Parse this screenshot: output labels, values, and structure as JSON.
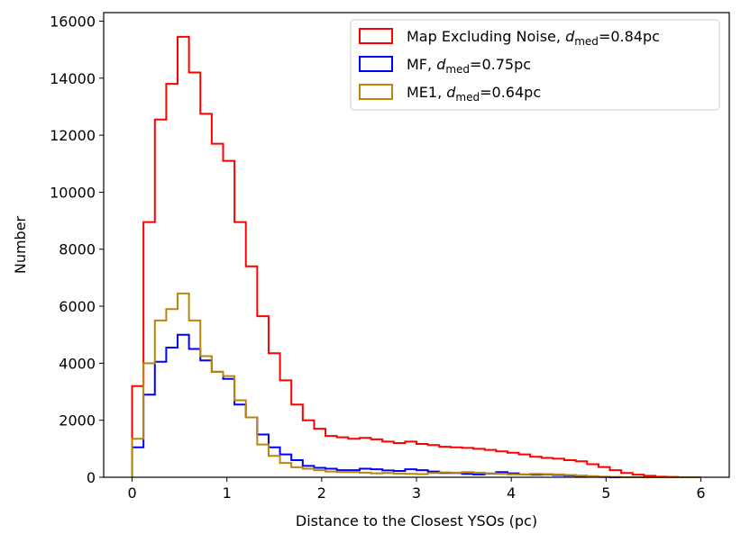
{
  "chart_data": {
    "type": "histogram",
    "xlabel": "Distance to the Closest YSOs (pc)",
    "ylabel": "Number",
    "xlim": [
      -0.3,
      6.3
    ],
    "ylim": [
      0,
      16300
    ],
    "xticks": [
      0,
      1,
      2,
      3,
      4,
      5,
      6
    ],
    "yticks": [
      0,
      2000,
      4000,
      6000,
      8000,
      10000,
      12000,
      14000,
      16000
    ],
    "bin_width": 0.12,
    "x_start": 0,
    "legend_position": "top-right",
    "series": [
      {
        "name": "Map Excluding Noise",
        "legend_prefix": "Map Excluding Noise, ",
        "legend_var": "d",
        "legend_sub": "med",
        "legend_value": "=0.84pc",
        "color": "#ff0000",
        "values": [
          3200,
          8950,
          12550,
          13800,
          15450,
          14200,
          12750,
          11700,
          11100,
          8950,
          7400,
          5650,
          4350,
          3400,
          2550,
          2000,
          1700,
          1450,
          1400,
          1350,
          1380,
          1330,
          1250,
          1200,
          1250,
          1170,
          1130,
          1070,
          1050,
          1030,
          1000,
          960,
          910,
          860,
          800,
          720,
          680,
          650,
          600,
          560,
          460,
          360,
          250,
          150,
          90,
          50,
          20,
          10,
          0,
          0
        ]
      },
      {
        "name": "MF",
        "legend_prefix": "MF, ",
        "legend_var": "d",
        "legend_sub": "med",
        "legend_value": "=0.75pc",
        "color": "#0000ff",
        "values": [
          1050,
          2900,
          4050,
          4550,
          5000,
          4500,
          4100,
          3700,
          3450,
          2550,
          2100,
          1500,
          1050,
          800,
          600,
          400,
          330,
          300,
          250,
          250,
          300,
          280,
          240,
          220,
          280,
          250,
          200,
          150,
          150,
          120,
          100,
          130,
          180,
          140,
          100,
          90,
          100,
          80,
          60,
          40,
          20,
          10,
          0,
          0,
          0,
          0,
          0,
          0,
          0,
          0
        ]
      },
      {
        "name": "ME1",
        "legend_prefix": "ME1, ",
        "legend_var": "d",
        "legend_sub": "med",
        "legend_value": "=0.64pc",
        "color": "#b8860b",
        "values": [
          1350,
          4000,
          5500,
          5900,
          6450,
          5500,
          4250,
          3700,
          3550,
          2700,
          2100,
          1150,
          750,
          500,
          350,
          300,
          250,
          200,
          180,
          180,
          160,
          140,
          150,
          130,
          120,
          110,
          150,
          170,
          160,
          180,
          160,
          140,
          120,
          100,
          100,
          120,
          110,
          100,
          80,
          60,
          40,
          20,
          10,
          0,
          0,
          0,
          0,
          0,
          0,
          0
        ]
      }
    ]
  }
}
